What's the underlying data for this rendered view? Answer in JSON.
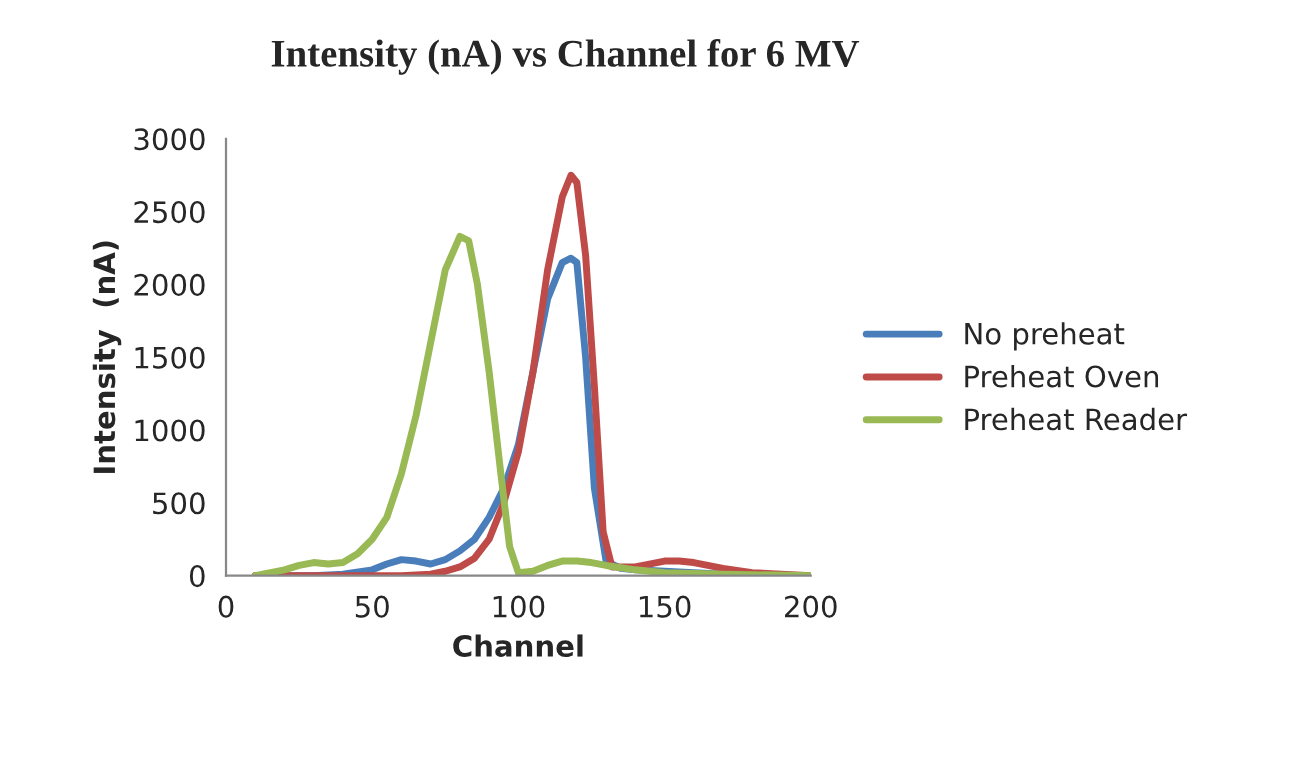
{
  "chart_data": {
    "type": "line",
    "title": "Intensity (nA) vs Channel for 6 MV",
    "xlabel": "Channel",
    "ylabel": "Intensity  (nA)",
    "xlim": [
      0,
      200
    ],
    "xticks": [
      0,
      50,
      100,
      150,
      200
    ],
    "ylim": [
      0,
      3000
    ],
    "yticks": [
      0,
      500,
      1000,
      1500,
      2000,
      2500,
      3000
    ],
    "grid": false,
    "legend": "right",
    "marker": "none",
    "line_style": "solid",
    "series": [
      {
        "name": "No preheat",
        "color": "#4a7ebb",
        "x": [
          10,
          20,
          30,
          40,
          50,
          55,
          60,
          65,
          70,
          75,
          80,
          85,
          90,
          95,
          100,
          105,
          110,
          115,
          118,
          120,
          123,
          126,
          130,
          135,
          140,
          150,
          160,
          170
        ],
        "values": [
          0,
          0,
          0,
          10,
          40,
          80,
          110,
          100,
          80,
          110,
          170,
          250,
          400,
          600,
          900,
          1400,
          1900,
          2150,
          2180,
          2150,
          1500,
          600,
          100,
          50,
          40,
          30,
          20,
          10
        ]
      },
      {
        "name": "Preheat Oven",
        "color": "#be4b48",
        "x": [
          10,
          30,
          50,
          60,
          70,
          75,
          80,
          85,
          90,
          95,
          100,
          105,
          110,
          115,
          118,
          120,
          123,
          126,
          129,
          132,
          140,
          150,
          155,
          160,
          170,
          180,
          190,
          200
        ],
        "values": [
          0,
          0,
          0,
          0,
          10,
          30,
          60,
          120,
          250,
          500,
          850,
          1400,
          2100,
          2600,
          2750,
          2700,
          2200,
          1300,
          300,
          60,
          60,
          100,
          100,
          90,
          50,
          20,
          10,
          0
        ]
      },
      {
        "name": "Preheat Reader",
        "color": "#98b954",
        "x": [
          10,
          20,
          25,
          30,
          35,
          40,
          45,
          50,
          55,
          60,
          65,
          70,
          75,
          80,
          83,
          86,
          90,
          94,
          97,
          100,
          105,
          110,
          115,
          120,
          125,
          130,
          140,
          150,
          170,
          200
        ],
        "values": [
          0,
          40,
          70,
          90,
          80,
          90,
          150,
          250,
          400,
          700,
          1100,
          1600,
          2100,
          2330,
          2300,
          2000,
          1400,
          700,
          200,
          20,
          30,
          70,
          100,
          100,
          90,
          70,
          40,
          20,
          10,
          0
        ]
      }
    ]
  }
}
